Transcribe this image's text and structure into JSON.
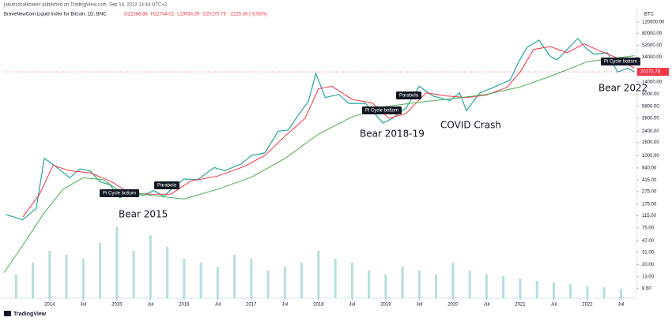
{
  "header": "jakubzdzalkowiec published on TradingView.com, Sep 14, 2022 14:44 UTC+2",
  "footer": "TradingView",
  "chart_data": {
    "type": "line",
    "symbol": "BraveNewCoin Liquid Index for Bitcoin, 1D, BNC",
    "ohlc": [
      "O22386.88",
      "H22744.02",
      "L19934.39",
      "C20175.78",
      "-2225.36 (-9.93%)"
    ],
    "currency": "BTC",
    "last_price": 20175.78,
    "log_scale": true,
    "grid": false,
    "xlim": [
      2013.32,
      2022.73
    ],
    "ylim": [
      6,
      200000
    ],
    "xticks": [
      {
        "value": 2014,
        "label": "2014"
      },
      {
        "value": 2014.5,
        "label": "Jul"
      },
      {
        "value": 2015,
        "label": "2015"
      },
      {
        "value": 2015.5,
        "label": "Jul"
      },
      {
        "value": 2016,
        "label": "2016"
      },
      {
        "value": 2016.5,
        "label": "Jul"
      },
      {
        "value": 2017,
        "label": "2017"
      },
      {
        "value": 2017.5,
        "label": "Jul"
      },
      {
        "value": 2018,
        "label": "2018"
      },
      {
        "value": 2018.5,
        "label": "Jul"
      },
      {
        "value": 2019,
        "label": "2019"
      },
      {
        "value": 2019.5,
        "label": "Jul"
      },
      {
        "value": 2020,
        "label": "2020"
      },
      {
        "value": 2020.5,
        "label": "Jul"
      },
      {
        "value": 2021,
        "label": "2021"
      },
      {
        "value": 2021.5,
        "label": "Jul"
      },
      {
        "value": 2022,
        "label": "2022"
      },
      {
        "value": 2022.5,
        "label": "Jul"
      }
    ],
    "yticks": [
      {
        "value": 120000,
        "label": "120000.00"
      },
      {
        "value": 80000,
        "label": "80000.00"
      },
      {
        "value": 52000,
        "label": "52000.00"
      },
      {
        "value": 34000,
        "label": "34000.00"
      },
      {
        "value": 14000,
        "label": "14000.00"
      },
      {
        "value": 9000,
        "label": "9000.00"
      },
      {
        "value": 5800,
        "label": "5800.00"
      },
      {
        "value": 3800,
        "label": "3800.00"
      },
      {
        "value": 2400,
        "label": "2400.00"
      },
      {
        "value": 1600,
        "label": "1600.00"
      },
      {
        "value": 1000,
        "label": "1000.00"
      },
      {
        "value": 640,
        "label": "640.00"
      },
      {
        "value": 415,
        "label": "415.00"
      },
      {
        "value": 275,
        "label": "275.00"
      },
      {
        "value": 175,
        "label": "175.00"
      },
      {
        "value": 115,
        "label": "115.00"
      },
      {
        "value": 75,
        "label": "75.00"
      },
      {
        "value": 47,
        "label": "47.00"
      },
      {
        "value": 31,
        "label": "31.00"
      },
      {
        "value": 20,
        "label": "20.00"
      },
      {
        "value": 13,
        "label": "13.00"
      },
      {
        "value": 8.5,
        "label": "8.50"
      }
    ],
    "series": [
      {
        "color": "#26a69a",
        "x": [
          2013.35,
          2013.6,
          2013.8,
          2013.92,
          2014.0,
          2014.15,
          2014.3,
          2014.45,
          2014.6,
          2014.75,
          2014.9,
          2015.04,
          2015.2,
          2015.4,
          2015.55,
          2015.7,
          2015.85,
          2016.0,
          2016.2,
          2016.45,
          2016.6,
          2016.85,
          2017.0,
          2017.2,
          2017.4,
          2017.55,
          2017.7,
          2017.85,
          2017.96,
          2018.1,
          2018.3,
          2018.45,
          2018.7,
          2018.88,
          2018.96,
          2019.1,
          2019.3,
          2019.5,
          2019.7,
          2019.95,
          2020.1,
          2020.2,
          2020.4,
          2020.6,
          2020.85,
          2020.98,
          2021.1,
          2021.28,
          2021.45,
          2021.55,
          2021.7,
          2021.86,
          2021.98,
          2022.1,
          2022.3,
          2022.45,
          2022.6,
          2022.7
        ],
        "values": [
          120,
          100,
          150,
          900,
          800,
          600,
          450,
          620,
          580,
          390,
          350,
          220,
          260,
          240,
          285,
          230,
          330,
          430,
          420,
          650,
          580,
          740,
          1000,
          1100,
          2400,
          2500,
          4300,
          7000,
          19000,
          8000,
          9000,
          6500,
          6500,
          4000,
          3200,
          3800,
          5500,
          12000,
          8500,
          7200,
          9500,
          5000,
          9500,
          11500,
          15000,
          29000,
          48000,
          63000,
          35000,
          31000,
          45000,
          67000,
          47000,
          38000,
          40000,
          20000,
          23000,
          20175.78
        ]
      },
      {
        "color": "#f23645",
        "x": [
          2013.6,
          2013.85,
          2014.05,
          2014.3,
          2014.6,
          2014.9,
          2015.2,
          2015.5,
          2015.8,
          2016.1,
          2016.5,
          2016.9,
          2017.2,
          2017.5,
          2017.8,
          2018.0,
          2018.2,
          2018.5,
          2018.8,
          2019.05,
          2019.3,
          2019.6,
          2019.9,
          2020.2,
          2020.5,
          2020.8,
          2021.0,
          2021.2,
          2021.45,
          2021.7,
          2021.95,
          2022.2,
          2022.45,
          2022.7
        ],
        "values": [
          110,
          250,
          700,
          580,
          540,
          400,
          260,
          250,
          250,
          400,
          480,
          680,
          1000,
          2000,
          3800,
          11000,
          12000,
          7500,
          6600,
          3800,
          4500,
          9500,
          8500,
          8000,
          8800,
          11500,
          20000,
          45000,
          50000,
          40000,
          55000,
          42000,
          33000,
          23000
        ]
      },
      {
        "color": "#4caf50",
        "x": [
          2013.32,
          2013.6,
          2013.9,
          2014.2,
          2014.5,
          2014.8,
          2015.0,
          2015.5,
          2016.0,
          2016.5,
          2017.0,
          2017.5,
          2018.0,
          2018.5,
          2019.0,
          2019.5,
          2020.0,
          2020.5,
          2021.0,
          2021.5,
          2022.0,
          2022.7
        ],
        "values": [
          15,
          40,
          120,
          300,
          450,
          420,
          300,
          240,
          210,
          300,
          460,
          900,
          2160,
          4000,
          5800,
          6800,
          7700,
          9000,
          11700,
          18000,
          29000,
          36000
        ]
      }
    ],
    "volume": {
      "color": "#26a69a",
      "x": [
        2013.5,
        2013.75,
        2014.0,
        2014.25,
        2014.5,
        2014.75,
        2015.0,
        2015.25,
        2015.5,
        2015.75,
        2016.0,
        2016.25,
        2016.5,
        2016.75,
        2017.0,
        2017.25,
        2017.5,
        2017.75,
        2018.0,
        2018.25,
        2018.5,
        2018.75,
        2019.0,
        2019.25,
        2019.5,
        2019.75,
        2020.0,
        2020.25,
        2020.5,
        2020.75,
        2021.0,
        2021.25,
        2021.5,
        2021.75,
        2022.0,
        2022.25,
        2022.5
      ],
      "values": [
        30,
        45,
        60,
        55,
        50,
        70,
        90,
        60,
        80,
        65,
        50,
        45,
        40,
        55,
        50,
        35,
        40,
        45,
        60,
        50,
        45,
        35,
        30,
        40,
        35,
        30,
        45,
        35,
        30,
        28,
        25,
        22,
        20,
        18,
        15,
        14,
        12
      ]
    },
    "annotations": [
      "Pi Cycle bottom",
      "Parabola",
      "Pi Cycle bottom",
      "Parabola",
      "Pi Cycle bottom",
      "Bear 2015",
      "Bear 2018-19",
      "COVID Crash",
      "Bear 2022"
    ]
  }
}
